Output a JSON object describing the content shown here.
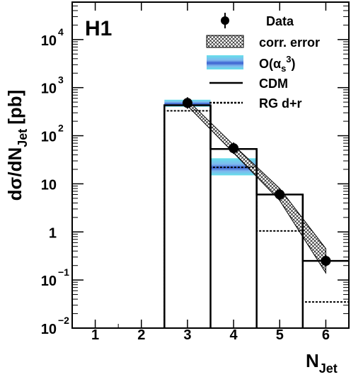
{
  "chart_data": {
    "type": "step-histogram",
    "experiment_label": "H1",
    "ylabel": {
      "main": "dσ/dN",
      "sub": "Jet",
      "unit": "[pb]"
    },
    "xlabel": {
      "main": "N",
      "sub": "Jet"
    },
    "x_ticks": [
      "1",
      "2",
      "3",
      "4",
      "5",
      "6"
    ],
    "y_tick_labels": [
      {
        "value": 0.01,
        "base": "10",
        "exp": "−2"
      },
      {
        "value": 0.1,
        "base": "10",
        "exp": "−1"
      },
      {
        "value": 1,
        "base": "1",
        "exp": ""
      },
      {
        "value": 10,
        "base": "10",
        "exp": ""
      },
      {
        "value": 100,
        "base": "10",
        "exp": "2"
      },
      {
        "value": 1000,
        "base": "10",
        "exp": "3"
      },
      {
        "value": 10000,
        "base": "10",
        "exp": "4"
      }
    ],
    "xlim": [
      0.5,
      6.5
    ],
    "ylim": [
      0.01,
      60000
    ],
    "y_scale": "log",
    "data": {
      "x": [
        3,
        4,
        5,
        6
      ],
      "y": [
        480,
        55,
        6,
        0.25
      ]
    },
    "corr_error_band": [
      {
        "x": 3.0,
        "lo": 420,
        "hi": 550
      },
      {
        "x": 4.0,
        "lo": 44,
        "hi": 64
      },
      {
        "x": 5.0,
        "lo": 4.5,
        "hi": 8.0
      },
      {
        "x": 6.0,
        "lo": 0.14,
        "hi": 0.45
      }
    ],
    "oalpha_band": [
      {
        "x0": 2.5,
        "x1": 3.5,
        "lo": 400,
        "hi": 560
      },
      {
        "x0": 3.5,
        "x1": 4.5,
        "lo": 15,
        "hi": 34
      }
    ],
    "cdm": [
      {
        "x0": 2.5,
        "x1": 3.5,
        "y": 430
      },
      {
        "x0": 3.5,
        "x1": 4.5,
        "y": 53
      },
      {
        "x0": 4.5,
        "x1": 5.5,
        "y": 6
      },
      {
        "x0": 5.5,
        "x1": 6.5,
        "y": 0.25
      }
    ],
    "rg": [
      {
        "x0": 2.5,
        "x1": 3.5,
        "y": 330
      },
      {
        "x0": 3.5,
        "x1": 4.5,
        "y": 22
      },
      {
        "x0": 4.5,
        "x1": 5.5,
        "y": 1.05
      },
      {
        "x0": 5.5,
        "x1": 6.5,
        "y": 0.035
      }
    ],
    "legend": {
      "data": "Data",
      "corr_error": "corr. error",
      "oalpha_prefix": "O(α",
      "oalpha_sub": "s",
      "oalpha_sup": "3",
      "oalpha_suffix": ")",
      "cdm": "CDM",
      "rg": "RG d+r"
    },
    "colors": {
      "frame": "#000000",
      "band_light": "#66e0ea",
      "band_dark": "#3a5fd0",
      "hatch": "#000000"
    },
    "grid": false
  }
}
